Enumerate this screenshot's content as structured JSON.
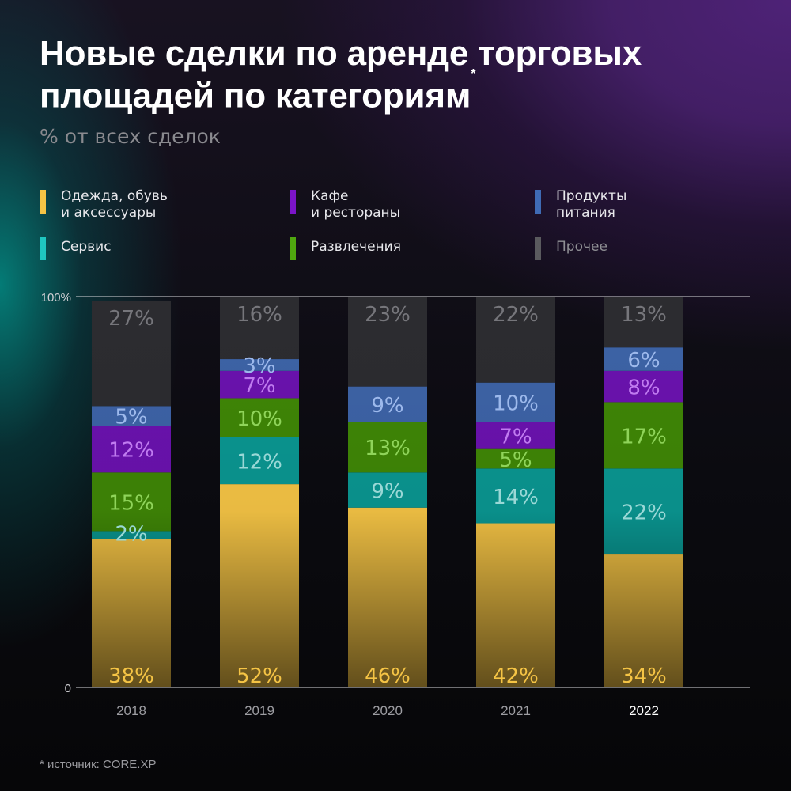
{
  "title": "Новые сделки по аренде торговых площадей по категориям",
  "title_mark": "*",
  "subtitle": "% от всех сделок",
  "footnote": "* источник: CORE.XP",
  "legend": [
    {
      "label": "Одежда, обувь\nи аксессуары",
      "color": "#f5c445"
    },
    {
      "label": "Кафе\nи рестораны",
      "color": "#7b14c8"
    },
    {
      "label": "Продукты\nпитания",
      "color": "#3f6bb5"
    },
    {
      "label": "Сервис",
      "color": "#1fc6c0"
    },
    {
      "label": "Развлечения",
      "color": "#4fa60f"
    },
    {
      "label": "Прочее",
      "color": "#5a5a5e"
    }
  ],
  "chart_data": {
    "type": "bar",
    "stacked": true,
    "categories": [
      "2018",
      "2019",
      "2020",
      "2021",
      "2022"
    ],
    "highlight_category": "2022",
    "ylim": [
      0,
      100
    ],
    "y_ticks": [
      "0",
      "100%"
    ],
    "series": [
      {
        "name": "Одежда, обувь и аксессуары",
        "values": [
          38,
          52,
          46,
          42,
          34
        ],
        "labels": [
          "38%",
          "52%",
          "46%",
          "42%",
          "34%"
        ],
        "color": "#f5c445",
        "label_color": "#f5c445"
      },
      {
        "name": "Сервис",
        "values": [
          2,
          12,
          9,
          14,
          22
        ],
        "labels": [
          "2%",
          "12%",
          "9%",
          "14%",
          "22%"
        ],
        "color": "#0a9691",
        "label_color": "#9ad8d6"
      },
      {
        "name": "Развлечения",
        "values": [
          15,
          10,
          13,
          5,
          17
        ],
        "labels": [
          "15%",
          "10%",
          "13%",
          "5%",
          "17%"
        ],
        "color": "#3f8606",
        "label_color": "#8fd45a"
      },
      {
        "name": "Кафе и рестораны",
        "values": [
          12,
          7,
          0,
          7,
          8
        ],
        "labels": [
          "12%",
          "7%",
          "",
          "7%",
          "8%"
        ],
        "color": "#6a12ae",
        "label_color": "#c07bf0"
      },
      {
        "name": "Продукты питания",
        "values": [
          5,
          3,
          9,
          10,
          6
        ],
        "labels": [
          "5%",
          "3%",
          "9%",
          "10%",
          "6%"
        ],
        "color": "#3d63a6",
        "label_color": "#9db9ec"
      },
      {
        "name": "Прочее",
        "values": [
          27,
          16,
          23,
          22,
          13
        ],
        "labels": [
          "27%",
          "16%",
          "23%",
          "22%",
          "13%"
        ],
        "color": "#2c2c30",
        "label_color": "#76767b"
      }
    ]
  }
}
